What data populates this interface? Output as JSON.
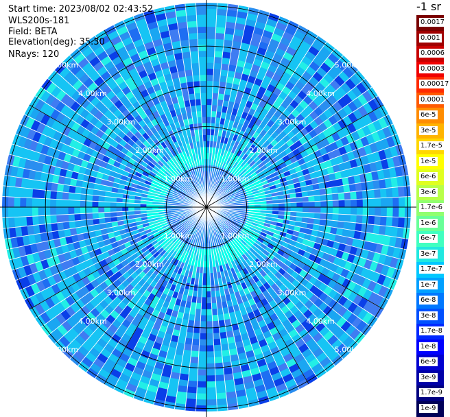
{
  "header": {
    "start_time": "Start time: 2023/08/02 02:43:52",
    "instrument": "WLS200s-181",
    "field": "Field: BETA",
    "elevation": "Elevation(deg): 35.30",
    "nrays": "NRays: 120"
  },
  "colorbar": {
    "unit_label": "-1 sr",
    "labels": [
      "0.0017",
      "0.001",
      "0.0006",
      "0.0003",
      "0.00017",
      "0.0001",
      "6e-5",
      "3e-5",
      "1.7e-5",
      "1e-5",
      "6e-6",
      "3e-6",
      "1.7e-6",
      "1e-6",
      "6e-7",
      "3e-7",
      "1.7e-7",
      "1e-7",
      "6e-8",
      "3e-8",
      "1.7e-8",
      "1e-8",
      "6e-9",
      "3e-9",
      "1.7e-9",
      "1e-9"
    ],
    "colors": [
      "#7a0000",
      "#a00000",
      "#c80000",
      "#f00000",
      "#ff2a00",
      "#ff5a00",
      "#ff8c00",
      "#ffb400",
      "#ffd700",
      "#ffff00",
      "#e0ff20",
      "#b8ff48",
      "#90ff70",
      "#68ff98",
      "#40ffc0",
      "#20e8e0",
      "#00c8ff",
      "#00a0ff",
      "#0078ff",
      "#0050ff",
      "#0028ff",
      "#0000ff",
      "#0000d0",
      "#0000a8",
      "#000080",
      "#000058"
    ]
  },
  "chart_data": {
    "type": "ppi_polar",
    "field": "BETA",
    "nrays": 120,
    "max_range_km": 5.0,
    "range_rings_km": [
      1.0,
      2.0,
      3.0,
      4.0,
      5.0
    ],
    "ring_labels": [
      "1.00km",
      "2.00km",
      "3.00km",
      "4.00km",
      "5.00km"
    ],
    "spoke_interval_deg": 30,
    "palette": [
      "#00ffea",
      "#22eee6",
      "#16c4f4",
      "#1aa6f2",
      "#2a8ef0",
      "#1e6ef2",
      "#3f7cf2",
      "#0a3fe8"
    ]
  }
}
